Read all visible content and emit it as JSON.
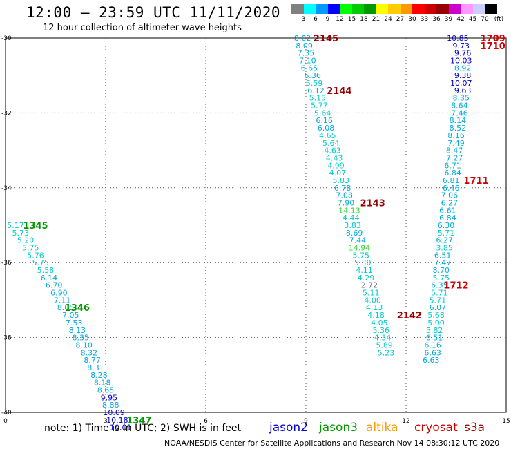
{
  "header": {
    "title": "12:00 – 23:59 UTC 11/11/2020",
    "subtitle": "12 hour collection of altimeter wave heights"
  },
  "colorbar": {
    "unit": "(ft)",
    "colors": [
      "#808080",
      "#00ffff",
      "#0099ff",
      "#0000ff",
      "#00ff00",
      "#00cc00",
      "#009900",
      "#ffff00",
      "#ffcc00",
      "#ff9900",
      "#ff0000",
      "#cc0000",
      "#990000",
      "#cc00cc",
      "#ff99ff",
      "#ccccff",
      "#000000"
    ],
    "labels": [
      "3",
      "6",
      "9",
      "12",
      "15",
      "18",
      "21",
      "24",
      "27",
      "30",
      "33",
      "36",
      "39",
      "42",
      "45",
      "70"
    ]
  },
  "note": "note:  1) Time is in UTC;  2) SWH is in feet",
  "legend": [
    {
      "name": "jason2",
      "color": "#0000cc"
    },
    {
      "name": "jason3",
      "color": "#009900"
    },
    {
      "name": "altika",
      "color": "#ff9900"
    },
    {
      "name": "cryosat",
      "color": "#cc0000"
    },
    {
      "name": "s3a",
      "color": "#990000"
    }
  ],
  "credit": "NOAA/NESDIS Center for Satellite Applications and Research    Nov 14 08:30:12 UTC 2020",
  "chart_data": {
    "type": "scatter",
    "xlim": [
      0,
      15
    ],
    "ylim": [
      -40,
      -30
    ],
    "xticks": [
      "0",
      "3",
      "6",
      "9",
      "12",
      "15"
    ],
    "yticks": [
      "-30",
      "-32",
      "-34",
      "-36",
      "-38",
      "-40"
    ],
    "grid": true,
    "series": [
      {
        "name": "jason3",
        "color": "#009900",
        "points": [
          {
            "x": 0.3,
            "y": -35.0,
            "v": "5.17",
            "c": "#00cccc"
          },
          {
            "x": 0.45,
            "y": -35.2,
            "v": "5.73",
            "c": "#00cccc"
          },
          {
            "x": 0.6,
            "y": -35.4,
            "v": "5.20",
            "c": "#00cccc"
          },
          {
            "x": 0.75,
            "y": -35.6,
            "v": "5.75",
            "c": "#00cccc"
          },
          {
            "x": 0.9,
            "y": -35.8,
            "v": "5.76",
            "c": "#00cccc"
          },
          {
            "x": 1.05,
            "y": -36.0,
            "v": "5.75",
            "c": "#00cccc"
          },
          {
            "x": 1.2,
            "y": -36.2,
            "v": "5.58",
            "c": "#00cccc"
          },
          {
            "x": 1.3,
            "y": -36.4,
            "v": "6.14",
            "c": "#00aadd"
          },
          {
            "x": 1.45,
            "y": -36.6,
            "v": "6.70",
            "c": "#00aadd"
          },
          {
            "x": 1.6,
            "y": -36.8,
            "v": "6.90",
            "c": "#00aadd"
          },
          {
            "x": 1.7,
            "y": -37.0,
            "v": "7.11",
            "c": "#00aadd"
          },
          {
            "x": 1.8,
            "y": -37.2,
            "v": "8.05",
            "c": "#00aadd"
          },
          {
            "x": 1.95,
            "y": -37.4,
            "v": "7.05",
            "c": "#00aadd"
          },
          {
            "x": 2.05,
            "y": -37.6,
            "v": "7.53",
            "c": "#00aadd"
          },
          {
            "x": 2.15,
            "y": -37.8,
            "v": "8.13",
            "c": "#00aadd"
          },
          {
            "x": 2.25,
            "y": -38.0,
            "v": "8.35",
            "c": "#00aadd"
          },
          {
            "x": 2.35,
            "y": -38.2,
            "v": "8.10",
            "c": "#00aadd"
          },
          {
            "x": 2.5,
            "y": -38.4,
            "v": "8.32",
            "c": "#00aadd"
          },
          {
            "x": 2.6,
            "y": -38.6,
            "v": "8.77",
            "c": "#00aadd"
          },
          {
            "x": 2.7,
            "y": -38.8,
            "v": "8.31",
            "c": "#00aadd"
          },
          {
            "x": 2.8,
            "y": -39.0,
            "v": "8.28",
            "c": "#00aadd"
          },
          {
            "x": 2.9,
            "y": -39.2,
            "v": "8.18",
            "c": "#00aadd"
          },
          {
            "x": 3.0,
            "y": -39.4,
            "v": "8.65",
            "c": "#00aadd"
          },
          {
            "x": 3.1,
            "y": -39.6,
            "v": "9.95",
            "c": "#0000cc"
          },
          {
            "x": 3.15,
            "y": -39.8,
            "v": "8.88",
            "c": "#00aadd"
          },
          {
            "x": 3.25,
            "y": -40.0,
            "v": "10.09",
            "c": "#0000cc"
          },
          {
            "x": 3.35,
            "y": -40.2,
            "v": "10.18",
            "c": "#0000cc"
          },
          {
            "x": 3.45,
            "y": -40.4,
            "v": "10.01",
            "c": "#0000cc"
          }
        ],
        "labels": [
          {
            "x": 0.9,
            "y": -35.0,
            "text": "1345"
          },
          {
            "x": 2.15,
            "y": -37.2,
            "text": "1346"
          },
          {
            "x": 4.0,
            "y": -40.2,
            "text": "1347"
          }
        ]
      },
      {
        "name": "s3a",
        "color": "#990000",
        "points": [
          {
            "x": 8.9,
            "y": -30.0,
            "v": "8.02",
            "c": "#00aadd"
          },
          {
            "x": 8.95,
            "y": -30.2,
            "v": "8.09",
            "c": "#00aadd"
          },
          {
            "x": 9.0,
            "y": -30.4,
            "v": "7.35",
            "c": "#00aadd"
          },
          {
            "x": 9.05,
            "y": -30.6,
            "v": "7.10",
            "c": "#00aadd"
          },
          {
            "x": 9.1,
            "y": -30.8,
            "v": "6.65",
            "c": "#00aadd"
          },
          {
            "x": 9.2,
            "y": -31.0,
            "v": "6.36",
            "c": "#00aadd"
          },
          {
            "x": 9.25,
            "y": -31.2,
            "v": "5.59",
            "c": "#00cccc"
          },
          {
            "x": 9.3,
            "y": -31.4,
            "v": "6.12",
            "c": "#00aadd"
          },
          {
            "x": 9.35,
            "y": -31.6,
            "v": "5.15",
            "c": "#00cccc"
          },
          {
            "x": 9.4,
            "y": -31.8,
            "v": "5.77",
            "c": "#00cccc"
          },
          {
            "x": 9.5,
            "y": -32.0,
            "v": "5.64",
            "c": "#00cccc"
          },
          {
            "x": 9.55,
            "y": -32.2,
            "v": "6.16",
            "c": "#00aadd"
          },
          {
            "x": 9.6,
            "y": -32.4,
            "v": "6.08",
            "c": "#00aadd"
          },
          {
            "x": 9.65,
            "y": -32.6,
            "v": "4.65",
            "c": "#00cccc"
          },
          {
            "x": 9.75,
            "y": -32.8,
            "v": "5.64",
            "c": "#00cccc"
          },
          {
            "x": 9.8,
            "y": -33.0,
            "v": "4.63",
            "c": "#00cccc"
          },
          {
            "x": 9.85,
            "y": -33.2,
            "v": "4.43",
            "c": "#00cccc"
          },
          {
            "x": 9.9,
            "y": -33.4,
            "v": "4.99",
            "c": "#00cccc"
          },
          {
            "x": 9.95,
            "y": -33.6,
            "v": "4.07",
            "c": "#00cccc"
          },
          {
            "x": 10.05,
            "y": -33.8,
            "v": "5.83",
            "c": "#00cccc"
          },
          {
            "x": 10.1,
            "y": -34.0,
            "v": "6.78",
            "c": "#00aadd"
          },
          {
            "x": 10.15,
            "y": -34.2,
            "v": "7.08",
            "c": "#00aadd"
          },
          {
            "x": 10.2,
            "y": -34.4,
            "v": "7.90",
            "c": "#00aadd"
          },
          {
            "x": 10.3,
            "y": -34.6,
            "v": "14.13",
            "c": "#33dd33"
          },
          {
            "x": 10.35,
            "y": -34.8,
            "v": "4.44",
            "c": "#00cccc"
          },
          {
            "x": 10.4,
            "y": -35.0,
            "v": "3.83",
            "c": "#00cccc"
          },
          {
            "x": 10.45,
            "y": -35.2,
            "v": "8.69",
            "c": "#00aadd"
          },
          {
            "x": 10.55,
            "y": -35.4,
            "v": "7.44",
            "c": "#00aadd"
          },
          {
            "x": 10.6,
            "y": -35.6,
            "v": "14.94",
            "c": "#33dd33"
          },
          {
            "x": 10.65,
            "y": -35.8,
            "v": "5.75",
            "c": "#00cccc"
          },
          {
            "x": 10.7,
            "y": -36.0,
            "v": "5.30",
            "c": "#00cccc"
          },
          {
            "x": 10.75,
            "y": -36.2,
            "v": "4.11",
            "c": "#00cccc"
          },
          {
            "x": 10.8,
            "y": -36.4,
            "v": "4.29",
            "c": "#00cccc"
          },
          {
            "x": 10.9,
            "y": -36.6,
            "v": "2.72",
            "c": "#777777"
          },
          {
            "x": 10.95,
            "y": -36.8,
            "v": "5.11",
            "c": "#00cccc"
          },
          {
            "x": 11.0,
            "y": -37.0,
            "v": "4.00",
            "c": "#00cccc"
          },
          {
            "x": 11.05,
            "y": -37.2,
            "v": "4.13",
            "c": "#00cccc"
          },
          {
            "x": 11.1,
            "y": -37.4,
            "v": "4.18",
            "c": "#00cccc"
          },
          {
            "x": 11.2,
            "y": -37.6,
            "v": "4.05",
            "c": "#00cccc"
          },
          {
            "x": 11.25,
            "y": -37.8,
            "v": "5.36",
            "c": "#00cccc"
          },
          {
            "x": 11.3,
            "y": -38.0,
            "v": "4.34",
            "c": "#00cccc"
          },
          {
            "x": 11.35,
            "y": -38.2,
            "v": "5.89",
            "c": "#00cccc"
          },
          {
            "x": 11.4,
            "y": -38.4,
            "v": "5.23",
            "c": "#00cccc"
          }
        ],
        "labels": [
          {
            "x": 9.6,
            "y": -30.0,
            "text": "2145"
          },
          {
            "x": 10.0,
            "y": -31.4,
            "text": "2144"
          },
          {
            "x": 11.0,
            "y": -34.4,
            "text": "2143"
          },
          {
            "x": 12.1,
            "y": -37.4,
            "text": "2142"
          }
        ]
      },
      {
        "name": "cryosat",
        "color": "#cc0000",
        "points": [
          {
            "x": 13.55,
            "y": -30.0,
            "v": "10.85",
            "c": "#0000cc"
          },
          {
            "x": 13.65,
            "y": -30.2,
            "v": "9.73",
            "c": "#0000cc"
          },
          {
            "x": 13.7,
            "y": -30.4,
            "v": "9.76",
            "c": "#0000cc"
          },
          {
            "x": 13.65,
            "y": -30.6,
            "v": "10.03",
            "c": "#0000cc"
          },
          {
            "x": 13.7,
            "y": -30.8,
            "v": "8.92",
            "c": "#00aadd"
          },
          {
            "x": 13.7,
            "y": -31.0,
            "v": "9.38",
            "c": "#0000cc"
          },
          {
            "x": 13.65,
            "y": -31.2,
            "v": "10.07",
            "c": "#0000cc"
          },
          {
            "x": 13.7,
            "y": -31.4,
            "v": "9.63",
            "c": "#0000cc"
          },
          {
            "x": 13.65,
            "y": -31.6,
            "v": "8.35",
            "c": "#00aadd"
          },
          {
            "x": 13.6,
            "y": -31.8,
            "v": "8.64",
            "c": "#00aadd"
          },
          {
            "x": 13.6,
            "y": -32.0,
            "v": "7.46",
            "c": "#00aadd"
          },
          {
            "x": 13.55,
            "y": -32.2,
            "v": "8.14",
            "c": "#00aadd"
          },
          {
            "x": 13.55,
            "y": -32.4,
            "v": "8.52",
            "c": "#00aadd"
          },
          {
            "x": 13.5,
            "y": -32.6,
            "v": "8.16",
            "c": "#00aadd"
          },
          {
            "x": 13.5,
            "y": -32.8,
            "v": "7.49",
            "c": "#00aadd"
          },
          {
            "x": 13.45,
            "y": -33.0,
            "v": "8.47",
            "c": "#00aadd"
          },
          {
            "x": 13.45,
            "y": -33.2,
            "v": "7.27",
            "c": "#00aadd"
          },
          {
            "x": 13.4,
            "y": -33.4,
            "v": "6.71",
            "c": "#00aadd"
          },
          {
            "x": 13.4,
            "y": -33.6,
            "v": "6.84",
            "c": "#00aadd"
          },
          {
            "x": 13.35,
            "y": -33.8,
            "v": "6.81",
            "c": "#00aadd"
          },
          {
            "x": 13.35,
            "y": -34.0,
            "v": "6.46",
            "c": "#00aadd"
          },
          {
            "x": 13.3,
            "y": -34.2,
            "v": "7.06",
            "c": "#00aadd"
          },
          {
            "x": 13.3,
            "y": -34.4,
            "v": "6.27",
            "c": "#00aadd"
          },
          {
            "x": 13.25,
            "y": -34.6,
            "v": "6.61",
            "c": "#00aadd"
          },
          {
            "x": 13.25,
            "y": -34.8,
            "v": "6.84",
            "c": "#00aadd"
          },
          {
            "x": 13.2,
            "y": -35.0,
            "v": "6.30",
            "c": "#00aadd"
          },
          {
            "x": 13.2,
            "y": -35.2,
            "v": "5.71",
            "c": "#00cccc"
          },
          {
            "x": 13.15,
            "y": -35.4,
            "v": "6.27",
            "c": "#00aadd"
          },
          {
            "x": 13.15,
            "y": -35.6,
            "v": "3.85",
            "c": "#00cccc"
          },
          {
            "x": 13.1,
            "y": -35.8,
            "v": "6.51",
            "c": "#00aadd"
          },
          {
            "x": 13.1,
            "y": -36.0,
            "v": "7.47",
            "c": "#00aadd"
          },
          {
            "x": 13.05,
            "y": -36.2,
            "v": "8.70",
            "c": "#00aadd"
          },
          {
            "x": 13.05,
            "y": -36.4,
            "v": "5.75",
            "c": "#00cccc"
          },
          {
            "x": 13.0,
            "y": -36.6,
            "v": "6.35",
            "c": "#00aadd"
          },
          {
            "x": 13.0,
            "y": -36.8,
            "v": "5.71",
            "c": "#00cccc"
          },
          {
            "x": 12.95,
            "y": -37.0,
            "v": "5.71",
            "c": "#00cccc"
          },
          {
            "x": 12.95,
            "y": -37.2,
            "v": "6.07",
            "c": "#00aadd"
          },
          {
            "x": 12.9,
            "y": -37.4,
            "v": "5.68",
            "c": "#00cccc"
          },
          {
            "x": 12.9,
            "y": -37.6,
            "v": "5.00",
            "c": "#00cccc"
          },
          {
            "x": 12.85,
            "y": -37.8,
            "v": "5.82",
            "c": "#00cccc"
          },
          {
            "x": 12.85,
            "y": -38.0,
            "v": "6.51",
            "c": "#00aadd"
          },
          {
            "x": 12.8,
            "y": -38.2,
            "v": "6.16",
            "c": "#00aadd"
          },
          {
            "x": 12.8,
            "y": -38.4,
            "v": "6.63",
            "c": "#00aadd"
          },
          {
            "x": 12.75,
            "y": -38.6,
            "v": "6.63",
            "c": "#00aadd"
          }
        ],
        "labels": [
          {
            "x": 14.6,
            "y": -30.0,
            "text": "1709"
          },
          {
            "x": 14.6,
            "y": -30.2,
            "text": "1710"
          },
          {
            "x": 14.1,
            "y": -33.8,
            "text": "1711"
          },
          {
            "x": 13.5,
            "y": -36.6,
            "text": "1712"
          }
        ]
      }
    ]
  }
}
